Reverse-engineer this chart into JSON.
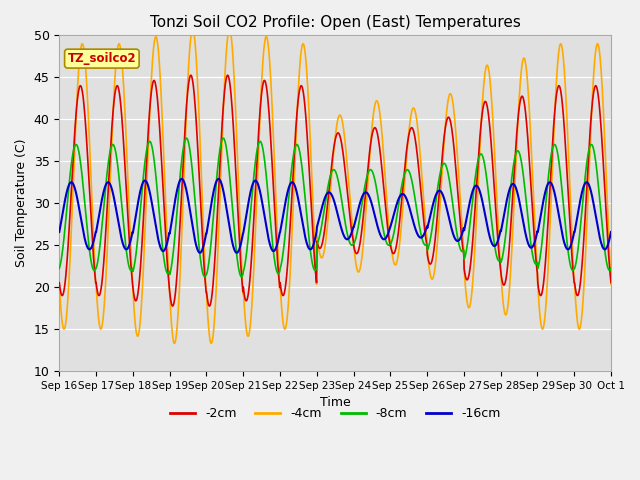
{
  "title": "Tonzi Soil CO2 Profile: Open (East) Temperatures",
  "xlabel": "Time",
  "ylabel": "Soil Temperature (C)",
  "ylim": [
    10,
    50
  ],
  "xtick_labels": [
    "Sep 16",
    "Sep 17",
    "Sep 18",
    "Sep 19",
    "Sep 20",
    "Sep 21",
    "Sep 22",
    "Sep 23",
    "Sep 24",
    "Sep 25",
    "Sep 26",
    "Sep 27",
    "Sep 28",
    "Sep 29",
    "Sep 30",
    "Oct 1"
  ],
  "ytick_vals": [
    10,
    15,
    20,
    25,
    30,
    35,
    40,
    45,
    50
  ],
  "legend_box_label": "TZ_soilco2",
  "legend_box_bg": "#ffff99",
  "legend_box_text_color": "#cc0000",
  "legend_box_edge": "#aa8800",
  "plot_bg": "#e0e0e0",
  "fig_bg": "#f0f0f0",
  "line_colors": {
    "2cm": "#dd0000",
    "4cm": "#ffaa00",
    "8cm": "#00bb00",
    "16cm": "#0000cc"
  },
  "line_labels": [
    "-2cm",
    "-4cm",
    "-8cm",
    "-16cm"
  ],
  "num_days": 15,
  "ppd": 96,
  "series": {
    "4cm": {
      "mean": 32.0,
      "amp": 17.0,
      "phase": -0.05,
      "amp_per_day": [
        1.0,
        1.0,
        1.05,
        1.1,
        1.1,
        1.05,
        1.0,
        0.5,
        0.6,
        0.55,
        0.65,
        0.85,
        0.9,
        1.0,
        1.0
      ]
    },
    "2cm": {
      "mean": 31.5,
      "amp": 12.5,
      "phase": 0.0,
      "amp_per_day": [
        1.0,
        1.0,
        1.05,
        1.1,
        1.1,
        1.05,
        1.0,
        0.55,
        0.6,
        0.6,
        0.7,
        0.85,
        0.9,
        1.0,
        1.0
      ]
    },
    "8cm": {
      "mean": 29.5,
      "amp": 7.5,
      "phase": 0.12,
      "amp_per_day": [
        1.0,
        1.0,
        1.05,
        1.1,
        1.1,
        1.05,
        1.0,
        0.6,
        0.6,
        0.6,
        0.7,
        0.85,
        0.9,
        1.0,
        1.0
      ]
    },
    "16cm": {
      "mean": 28.5,
      "amp": 4.0,
      "phase": 0.25,
      "amp_per_day": [
        1.0,
        1.0,
        1.05,
        1.1,
        1.1,
        1.05,
        1.0,
        0.7,
        0.7,
        0.65,
        0.75,
        0.9,
        0.95,
        1.0,
        1.0
      ]
    }
  }
}
